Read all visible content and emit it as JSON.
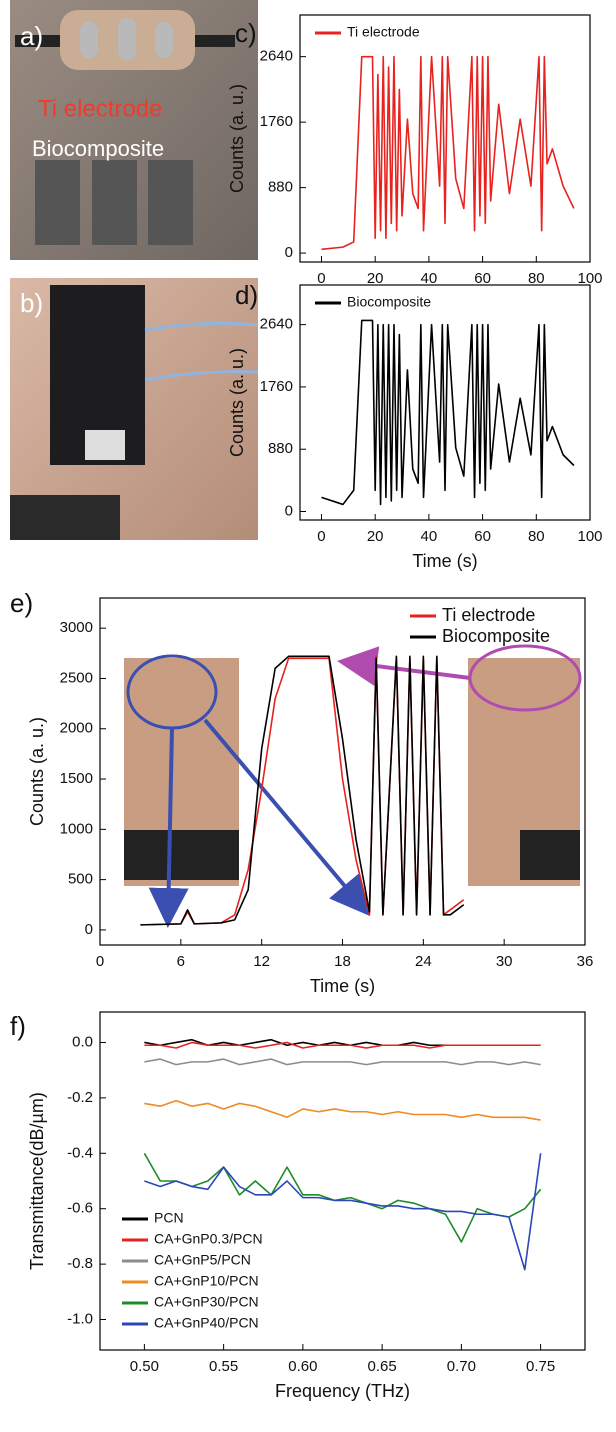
{
  "photos": {
    "a": {
      "label": "a)",
      "texts": [
        "Ti electrode",
        "Biocomposite"
      ]
    },
    "b": {
      "label": "b)"
    }
  },
  "chart_data": [
    {
      "type": "line",
      "label": "c)",
      "ylabel": "Counts (a. u.)",
      "x": [
        0,
        8,
        12,
        15,
        19,
        20,
        21,
        22,
        23,
        24,
        25,
        26,
        27,
        28,
        29,
        30,
        32,
        34,
        36,
        37,
        38,
        41,
        44,
        45,
        46,
        47,
        50,
        53,
        56,
        57,
        58,
        59,
        60,
        61,
        62,
        63,
        66,
        70,
        74,
        78,
        81,
        82,
        83,
        84,
        86,
        90,
        94
      ],
      "xlim": [
        -8,
        100
      ],
      "xticks": [
        0,
        20,
        40,
        60,
        80,
        100
      ],
      "ylim": [
        -120,
        3200
      ],
      "yticks": [
        0,
        880,
        1760,
        2640
      ],
      "legend": "upper left",
      "series": [
        {
          "name": "Ti electrode",
          "color": "#e8221e",
          "values": [
            50,
            80,
            150,
            2640,
            2640,
            200,
            2400,
            300,
            2640,
            200,
            2500,
            400,
            2640,
            300,
            2200,
            500,
            1800,
            800,
            600,
            2640,
            300,
            2640,
            900,
            2640,
            400,
            2640,
            1000,
            600,
            2640,
            300,
            2640,
            500,
            2640,
            400,
            2640,
            700,
            2000,
            800,
            1800,
            900,
            2640,
            300,
            2640,
            1200,
            1400,
            900,
            600
          ]
        }
      ]
    },
    {
      "type": "line",
      "label": "d)",
      "ylabel": "Counts (a. u.)",
      "xlabel": "Time (s)",
      "x": [
        0,
        8,
        12,
        15,
        19,
        20,
        21,
        22,
        23,
        24,
        25,
        26,
        27,
        28,
        29,
        30,
        32,
        34,
        36,
        37,
        38,
        41,
        44,
        45,
        46,
        47,
        50,
        53,
        56,
        57,
        58,
        59,
        60,
        61,
        62,
        63,
        66,
        70,
        74,
        78,
        81,
        82,
        83,
        84,
        86,
        90,
        94
      ],
      "xlim": [
        -8,
        100
      ],
      "xticks": [
        0,
        20,
        40,
        60,
        80,
        100
      ],
      "ylim": [
        -120,
        3200
      ],
      "yticks": [
        0,
        880,
        1760,
        2640
      ],
      "legend": "upper left",
      "series": [
        {
          "name": "Biocomposite",
          "color": "#000000",
          "values": [
            200,
            100,
            300,
            2700,
            2700,
            300,
            2640,
            100,
            2640,
            200,
            2640,
            150,
            2640,
            300,
            2500,
            200,
            2000,
            600,
            400,
            2640,
            200,
            2640,
            700,
            2640,
            300,
            2640,
            900,
            500,
            2640,
            200,
            2640,
            400,
            2640,
            300,
            2640,
            600,
            1800,
            700,
            1600,
            800,
            2640,
            200,
            2640,
            1000,
            1200,
            800,
            650
          ]
        }
      ]
    },
    {
      "type": "line",
      "label": "e)",
      "ylabel": "Counts (a. u.)",
      "xlabel": "Time (s)",
      "x": [
        3,
        6,
        6.5,
        7,
        9,
        10,
        11,
        12,
        13,
        14,
        17,
        18,
        19,
        20,
        20.5,
        21,
        22,
        22.5,
        23,
        23.5,
        24,
        24.5,
        25,
        25.5,
        26,
        27
      ],
      "xlim": [
        0,
        36
      ],
      "xticks": [
        0,
        6,
        12,
        18,
        24,
        30,
        36
      ],
      "ylim": [
        -150,
        3300
      ],
      "yticks": [
        0,
        500,
        1000,
        1500,
        2000,
        2500,
        3000
      ],
      "legend": "upper right",
      "series": [
        {
          "name": "Ti electrode",
          "color": "#e8221e",
          "values": [
            50,
            60,
            180,
            60,
            70,
            150,
            600,
            1400,
            2300,
            2700,
            2700,
            1500,
            700,
            150,
            2720,
            150,
            2700,
            150,
            2700,
            150,
            2700,
            150,
            2700,
            150,
            200,
            300
          ]
        },
        {
          "name": "Biocomposite",
          "color": "#000000",
          "values": [
            50,
            60,
            200,
            60,
            70,
            100,
            400,
            1800,
            2600,
            2720,
            2720,
            1900,
            900,
            180,
            2700,
            150,
            2720,
            150,
            2720,
            150,
            2720,
            150,
            2720,
            150,
            150,
            250
          ]
        }
      ]
    },
    {
      "type": "line",
      "label": "f)",
      "ylabel": "Transmittance(dB/µm)",
      "xlabel": "Frequency (THz)",
      "x": [
        0.5,
        0.51,
        0.52,
        0.53,
        0.54,
        0.55,
        0.56,
        0.57,
        0.58,
        0.59,
        0.6,
        0.61,
        0.62,
        0.63,
        0.64,
        0.65,
        0.66,
        0.67,
        0.68,
        0.69,
        0.7,
        0.71,
        0.72,
        0.73,
        0.74,
        0.75
      ],
      "xlim": [
        0.472,
        0.778
      ],
      "xticks": [
        {
          "value": 0.5,
          "label": "0.50"
        },
        0.55,
        {
          "value": 0.6,
          "label": "0.60"
        },
        0.65,
        {
          "value": 0.7,
          "label": "0.70"
        },
        0.75
      ],
      "ylim": [
        -1.11,
        0.11
      ],
      "yticks": [
        {
          "value": 0,
          "label": "0.0"
        },
        -0.2,
        -0.4,
        -0.6,
        -0.8,
        {
          "value": -1,
          "label": "-1.0"
        }
      ],
      "legend": "lower left",
      "series": [
        {
          "name": "PCN",
          "color": "#000000",
          "values": [
            0,
            -0.01,
            0,
            0.01,
            -0.01,
            0,
            -0.01,
            0,
            0.01,
            -0.01,
            0,
            -0.01,
            0,
            -0.01,
            0,
            -0.01,
            -0.01,
            0,
            -0.01,
            -0.01,
            -0.01,
            -0.01,
            -0.01,
            -0.01,
            -0.01,
            -0.01
          ]
        },
        {
          "name": "CA+GnP0.3/PCN",
          "color": "#e8221e",
          "values": [
            -0.01,
            -0.01,
            -0.02,
            0,
            -0.01,
            -0.01,
            -0.01,
            -0.02,
            -0.01,
            0,
            -0.02,
            -0.01,
            -0.01,
            -0.01,
            -0.02,
            -0.01,
            -0.01,
            -0.01,
            -0.02,
            -0.01,
            -0.01,
            -0.01,
            -0.01,
            -0.01,
            -0.01,
            -0.01
          ]
        },
        {
          "name": "CA+GnP5/PCN",
          "color": "#8c8c8c",
          "values": [
            -0.07,
            -0.06,
            -0.08,
            -0.07,
            -0.07,
            -0.06,
            -0.08,
            -0.07,
            -0.06,
            -0.08,
            -0.07,
            -0.07,
            -0.07,
            -0.07,
            -0.08,
            -0.07,
            -0.07,
            -0.07,
            -0.07,
            -0.07,
            -0.08,
            -0.07,
            -0.07,
            -0.08,
            -0.07,
            -0.08
          ]
        },
        {
          "name": "CA+GnP10/PCN",
          "color": "#f08a24",
          "values": [
            -0.22,
            -0.23,
            -0.21,
            -0.23,
            -0.22,
            -0.24,
            -0.22,
            -0.23,
            -0.25,
            -0.27,
            -0.24,
            -0.25,
            -0.24,
            -0.25,
            -0.25,
            -0.26,
            -0.25,
            -0.26,
            -0.26,
            -0.26,
            -0.27,
            -0.26,
            -0.27,
            -0.27,
            -0.27,
            -0.28
          ]
        },
        {
          "name": "CA+GnP30/PCN",
          "color": "#1e8c2c",
          "values": [
            -0.4,
            -0.5,
            -0.5,
            -0.52,
            -0.5,
            -0.45,
            -0.55,
            -0.5,
            -0.55,
            -0.45,
            -0.55,
            -0.55,
            -0.57,
            -0.56,
            -0.58,
            -0.6,
            -0.57,
            -0.58,
            -0.6,
            -0.62,
            -0.72,
            -0.6,
            -0.62,
            -0.63,
            -0.6,
            -0.53
          ]
        },
        {
          "name": "CA+GnP40/PCN",
          "color": "#2b46b8",
          "values": [
            -0.5,
            -0.52,
            -0.5,
            -0.52,
            -0.53,
            -0.45,
            -0.52,
            -0.55,
            -0.55,
            -0.5,
            -0.56,
            -0.56,
            -0.57,
            -0.57,
            -0.58,
            -0.59,
            -0.59,
            -0.6,
            -0.6,
            -0.61,
            -0.61,
            -0.62,
            -0.62,
            -0.63,
            -0.82,
            -0.4
          ]
        }
      ]
    }
  ]
}
